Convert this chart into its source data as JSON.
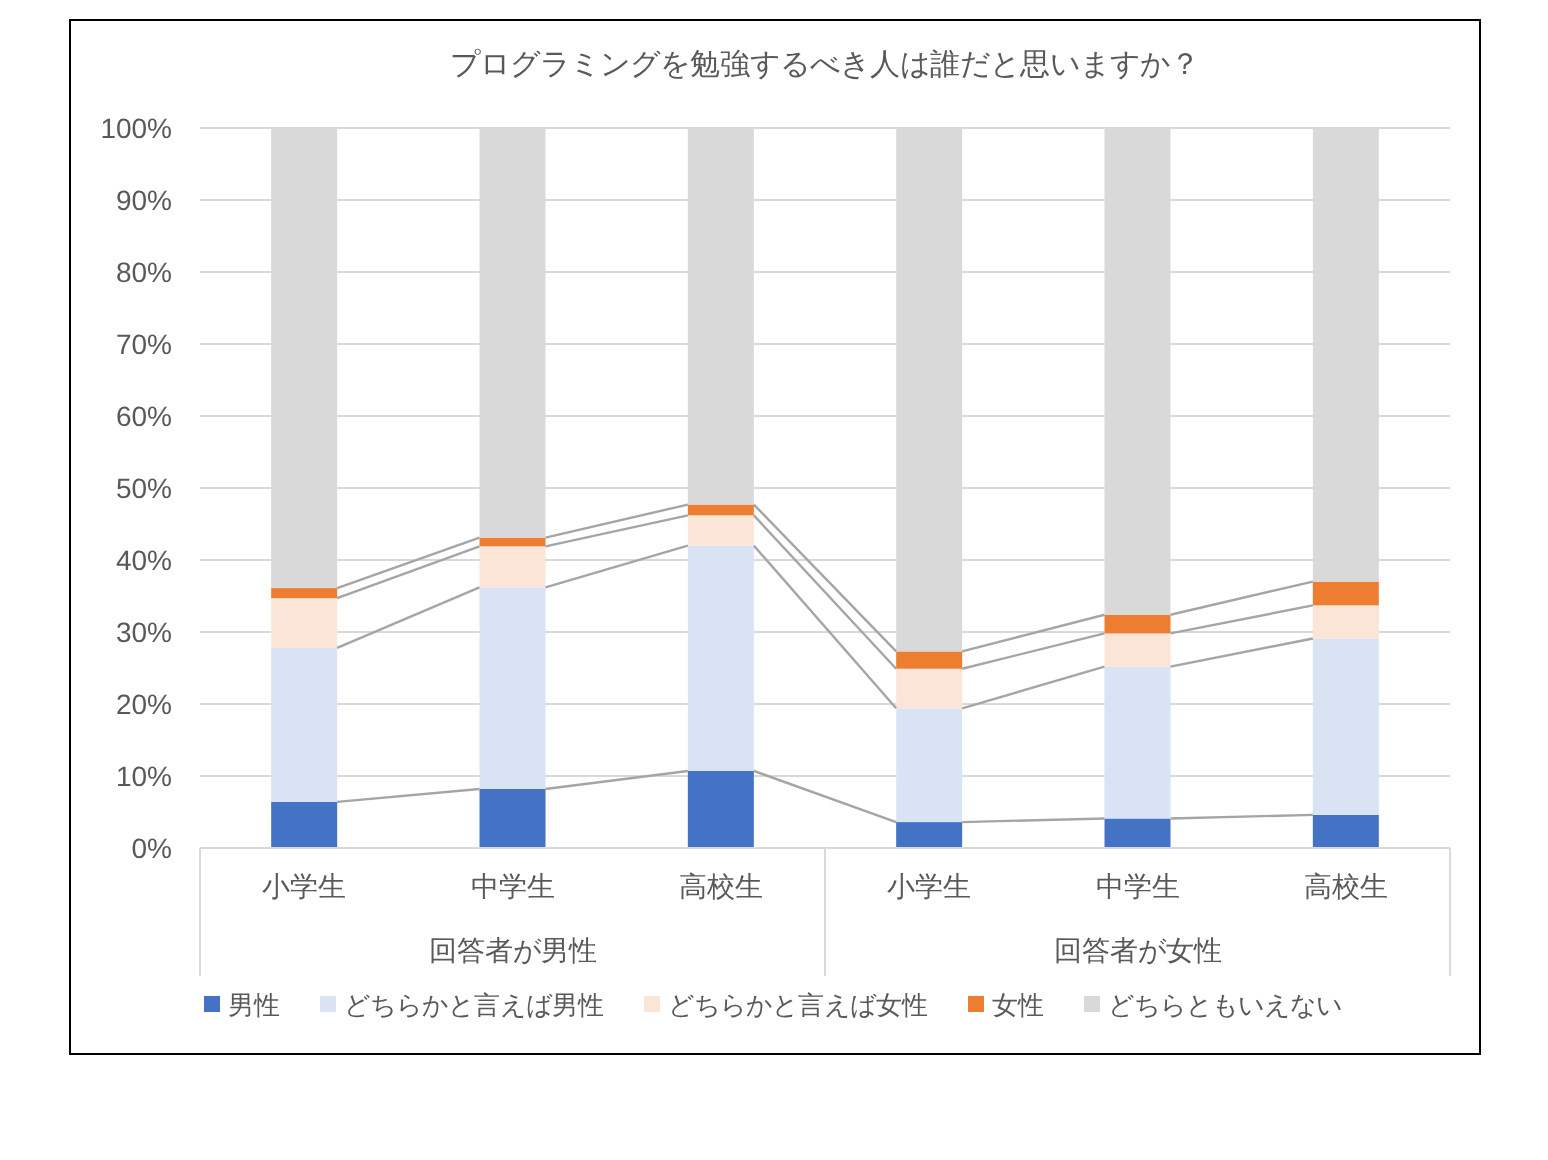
{
  "chart_data": {
    "type": "bar",
    "stacked": true,
    "title": "プログラミングを勉強するべき人は誰だと思いますか？",
    "categories": [
      "小学生",
      "中学生",
      "高校生",
      "小学生",
      "中学生",
      "高校生"
    ],
    "annotations": [
      "回答者が男性",
      "回答者が女性"
    ],
    "series": [
      {
        "name": "男性",
        "color": "#4472c4",
        "values": [
          6.4,
          8.2,
          10.7,
          3.6,
          4.1,
          4.6
        ]
      },
      {
        "name": "どちらかと言えば男性",
        "color": "#dae3f3",
        "values": [
          21.4,
          28.0,
          31.3,
          15.8,
          21.1,
          24.5
        ]
      },
      {
        "name": "どちらかと言えば女性",
        "color": "#fbe5d6",
        "values": [
          6.9,
          5.7,
          4.2,
          5.5,
          4.6,
          4.6
        ]
      },
      {
        "name": "女性",
        "color": "#ed7d31",
        "values": [
          1.4,
          1.2,
          1.5,
          2.4,
          2.6,
          3.3
        ]
      },
      {
        "name": "どちらともいえない",
        "color": "#d9d9d9",
        "values": [
          63.9,
          56.9,
          52.3,
          72.7,
          67.6,
          63.0
        ]
      }
    ],
    "ylim": [
      0,
      100
    ],
    "yticks": [
      {
        "value": 0,
        "label": "0%"
      },
      {
        "value": 10,
        "label": "10%"
      },
      {
        "value": 20,
        "label": "20%"
      },
      {
        "value": 30,
        "label": "30%"
      },
      {
        "value": 40,
        "label": "40%"
      },
      {
        "value": 50,
        "label": "50%"
      },
      {
        "value": 60,
        "label": "60%"
      },
      {
        "value": 70,
        "label": "70%"
      },
      {
        "value": 80,
        "label": "80%"
      },
      {
        "value": 90,
        "label": "90%"
      },
      {
        "value": 100,
        "label": "100%"
      }
    ],
    "grid": "y",
    "legend": "bottom"
  }
}
